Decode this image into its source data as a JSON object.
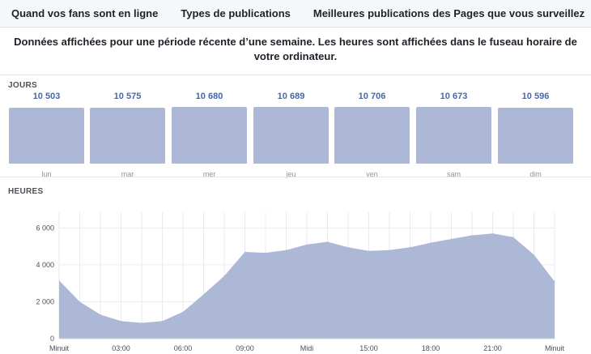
{
  "tabs": [
    "Quand vos fans sont en ligne",
    "Types de publications",
    "Meilleures publications des Pages que vous surveillez"
  ],
  "notice": "Données affichées pour une période récente d’une semaine. Les heures sont affichées dans le fuseau horaire de votre ordinateur.",
  "days_section": {
    "label": "JOURS",
    "days": [
      {
        "label": "lun",
        "value_text": "10 503",
        "value": 10503
      },
      {
        "label": "mar",
        "value_text": "10 575",
        "value": 10575
      },
      {
        "label": "mer",
        "value_text": "10 680",
        "value": 10680
      },
      {
        "label": "jeu",
        "value_text": "10 689",
        "value": 10689
      },
      {
        "label": "ven",
        "value_text": "10 706",
        "value": 10706
      },
      {
        "label": "sam",
        "value_text": "10 673",
        "value": 10673
      },
      {
        "label": "dim",
        "value_text": "10 596",
        "value": 10596
      }
    ]
  },
  "hours_section": {
    "label": "HEURES"
  },
  "colors": {
    "bar_fill": "#adb7d6",
    "area_fill": "#adb7d6",
    "value_text": "#4267b2",
    "grid": "#e9ebee"
  },
  "chart_data": [
    {
      "type": "bar",
      "title": "",
      "categories": [
        "lun",
        "mar",
        "mer",
        "jeu",
        "ven",
        "sam",
        "dim"
      ],
      "values": [
        10503,
        10575,
        10680,
        10689,
        10706,
        10673,
        10596
      ]
    },
    {
      "type": "area",
      "title": "",
      "xlabel": "",
      "ylabel": "",
      "x": [
        0,
        1,
        2,
        3,
        4,
        5,
        6,
        7,
        8,
        9,
        10,
        11,
        12,
        13,
        14,
        15,
        16,
        17,
        18,
        19,
        20,
        21,
        22,
        23,
        24
      ],
      "values": [
        3150,
        2000,
        1300,
        950,
        850,
        950,
        1450,
        2400,
        3400,
        4700,
        4650,
        4800,
        5100,
        5250,
        4950,
        4750,
        4800,
        4950,
        5200,
        5400,
        5600,
        5700,
        5500,
        4550,
        3100
      ],
      "ylim": [
        0,
        6500
      ],
      "y_ticks": [
        0,
        2000,
        4000,
        6000
      ],
      "y_tick_labels": [
        "0",
        "2 000",
        "4 000",
        "6 000"
      ],
      "x_ticks": [
        0,
        3,
        6,
        9,
        12,
        15,
        18,
        21,
        24
      ],
      "x_tick_labels": [
        "Minuit",
        "03:00",
        "06:00",
        "09:00",
        "Midi",
        "15:00",
        "18:00",
        "21:00",
        "Minuit"
      ],
      "grid": true
    }
  ]
}
